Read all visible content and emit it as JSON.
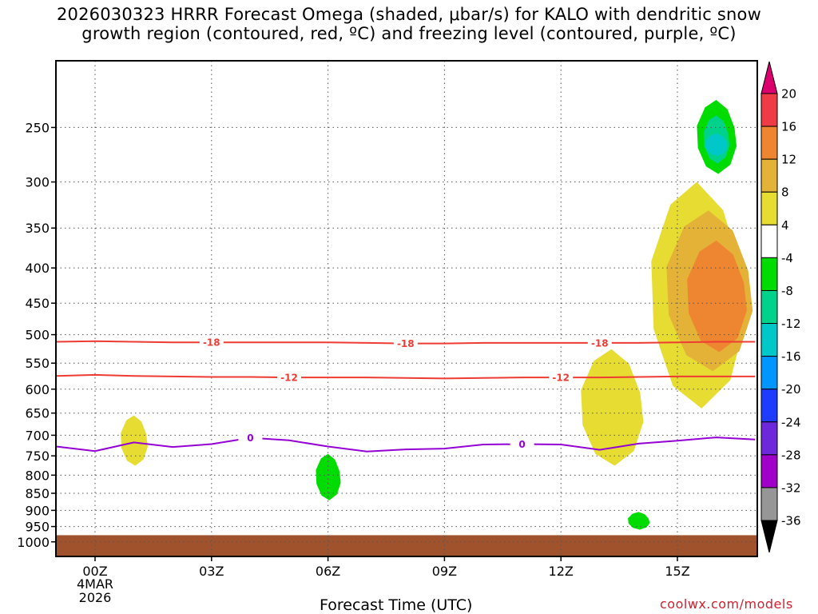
{
  "title_line1": "2026030323 HRRR Forecast Omega (shaded, μbar/s) for KALO with dendritic snow",
  "title_line2": "growth region (contoured, red, ºC) and freezing level (contoured, purple, ºC)",
  "source": "coolwx.com/models",
  "colors": {
    "ground": "#a0522d",
    "temp_contour": "#ee3b33",
    "freezing_contour": "#9400d3"
  },
  "chart_data": {
    "type": "heatmap",
    "title": "2026030323 HRRR Forecast Omega (shaded, μbar/s) for KALO with dendritic snow growth region (contoured, red, ºC) and freezing level (contoured, purple, ºC)",
    "xlabel": "Forecast Time (UTC)",
    "ylabel": "",
    "x_range_hours": [
      -1,
      17
    ],
    "y_range_hpa": [
      200,
      1050
    ],
    "y_scale": "log-pressure",
    "y_ticks": [
      250,
      300,
      350,
      400,
      450,
      500,
      550,
      600,
      650,
      700,
      750,
      800,
      850,
      900,
      950,
      1000
    ],
    "x_ticks": [
      {
        "hour": 0,
        "label": "00Z",
        "sub1": "4MAR",
        "sub2": "2026"
      },
      {
        "hour": 3,
        "label": "03Z"
      },
      {
        "hour": 6,
        "label": "06Z"
      },
      {
        "hour": 9,
        "label": "09Z"
      },
      {
        "hour": 12,
        "label": "12Z"
      },
      {
        "hour": 15,
        "label": "15Z"
      }
    ],
    "grid": true,
    "ground_level_hpa": 978,
    "colorbar": {
      "units": "μbar/s",
      "labels": [
        20,
        16,
        12,
        8,
        4,
        -4,
        -8,
        -12,
        -16,
        -20,
        -24,
        -28,
        -32,
        -36
      ],
      "colors": [
        "#ee3b46",
        "#ee8530",
        "#e3b236",
        "#e6dc32",
        "#ffffff",
        "#00dc00",
        "#00d28c",
        "#00c8c8",
        "#0096ff",
        "#1e3cff",
        "#6e28dc",
        "#a000c8",
        "#969696"
      ],
      "top_color": "#dc006e",
      "bottom_color": "#000000"
    },
    "series": [
      {
        "name": "-18",
        "color": "#ee3b33",
        "x": [
          -1,
          0,
          1,
          2,
          3,
          4,
          5,
          6,
          7,
          8,
          9,
          10,
          11,
          12,
          13,
          14,
          15,
          16,
          17
        ],
        "y": [
          512,
          511,
          512,
          513,
          513,
          513,
          513,
          513,
          514,
          515,
          515,
          514,
          514,
          514,
          514,
          514,
          513,
          512,
          512
        ],
        "labels_at": [
          3,
          8,
          13
        ]
      },
      {
        "name": "-12",
        "color": "#ee3b33",
        "x": [
          -1,
          0,
          1,
          2,
          3,
          4,
          5,
          6,
          7,
          8,
          9,
          10,
          11,
          12,
          13,
          14,
          15,
          16,
          17
        ],
        "y": [
          574,
          572,
          574,
          575,
          576,
          576,
          577,
          577,
          577,
          578,
          579,
          578,
          577,
          577,
          577,
          576,
          575,
          575,
          575
        ],
        "labels_at": [
          5,
          12
        ]
      },
      {
        "name": "0",
        "color": "#9400d3",
        "x": [
          -1,
          0,
          1,
          2,
          3,
          4,
          5,
          6,
          7,
          8,
          9,
          10,
          11,
          12,
          13,
          14,
          15,
          16,
          17
        ],
        "y": [
          727,
          738,
          717,
          728,
          721,
          706,
          712,
          727,
          739,
          734,
          732,
          722,
          721,
          722,
          735,
          720,
          713,
          705,
          710
        ],
        "labels_at": [
          4,
          11
        ]
      }
    ],
    "omega_regions": [
      {
        "level": 4,
        "color": "#e6dc32",
        "center_hour": 1.0,
        "p_top": 655,
        "p_bottom": 775
      },
      {
        "level": -4,
        "color": "#00dc00",
        "center_hour": 6.0,
        "p_top": 745,
        "p_bottom": 870
      },
      {
        "level": 4,
        "color": "#e6dc32",
        "center_hour": 13.3,
        "p_top": 525,
        "p_bottom": 775
      },
      {
        "level": -4,
        "color": "#00dc00",
        "center_hour": 14.0,
        "p_top": 905,
        "p_bottom": 960
      },
      {
        "level": 4,
        "color": "#e6dc32",
        "center_hour": 15.5,
        "p_top": 300,
        "p_bottom": 640
      },
      {
        "level": 8,
        "color": "#e3b236",
        "center_hour": 15.8,
        "p_top": 330,
        "p_bottom": 565
      },
      {
        "level": 12,
        "color": "#ee8530",
        "center_hour": 16.0,
        "p_top": 365,
        "p_bottom": 530
      },
      {
        "level": -4,
        "color": "#00dc00",
        "center_hour": 16.0,
        "p_top": 228,
        "p_bottom": 292
      },
      {
        "level": -8,
        "color": "#00d28c",
        "center_hour": 16.0,
        "p_top": 240,
        "p_bottom": 282
      },
      {
        "level": -12,
        "color": "#00c8c8",
        "center_hour": 16.0,
        "p_top": 255,
        "p_bottom": 275
      }
    ]
  }
}
